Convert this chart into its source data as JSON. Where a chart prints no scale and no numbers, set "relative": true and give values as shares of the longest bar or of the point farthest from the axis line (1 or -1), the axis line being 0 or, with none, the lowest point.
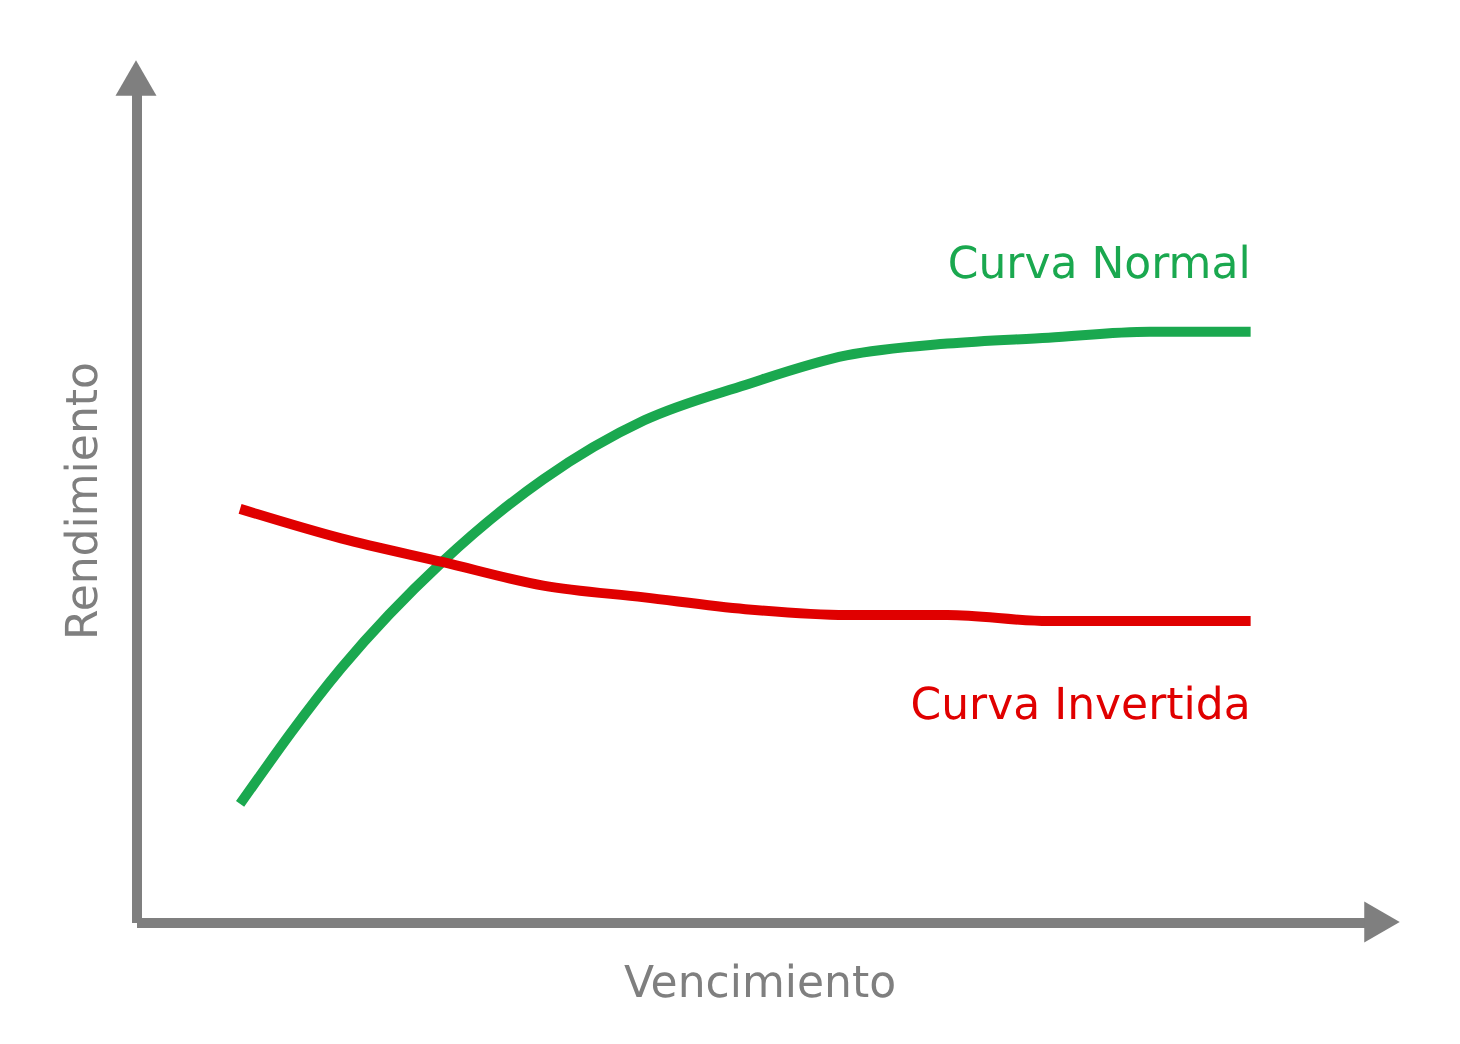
{
  "chart_data": {
    "type": "line",
    "relative": true,
    "xlabel": "Vencimiento",
    "ylabel": "Rendimiento",
    "categories": [
      null,
      null,
      null,
      null,
      null,
      null,
      null,
      null,
      null,
      null,
      null
    ],
    "series": [
      {
        "name": "Curva Normal",
        "color": "#1aa84f",
        "values": [
          0.2,
          0.43,
          0.61,
          0.75,
          0.85,
          0.91,
          0.96,
          0.98,
          0.99,
          1,
          1
        ]
      },
      {
        "name": "Curva Invertida",
        "color": "#e00000",
        "values": [
          0.7,
          0.65,
          0.61,
          0.57,
          0.55,
          0.53,
          0.52,
          0.52,
          0.51,
          0.51,
          0.51
        ]
      }
    ]
  }
}
